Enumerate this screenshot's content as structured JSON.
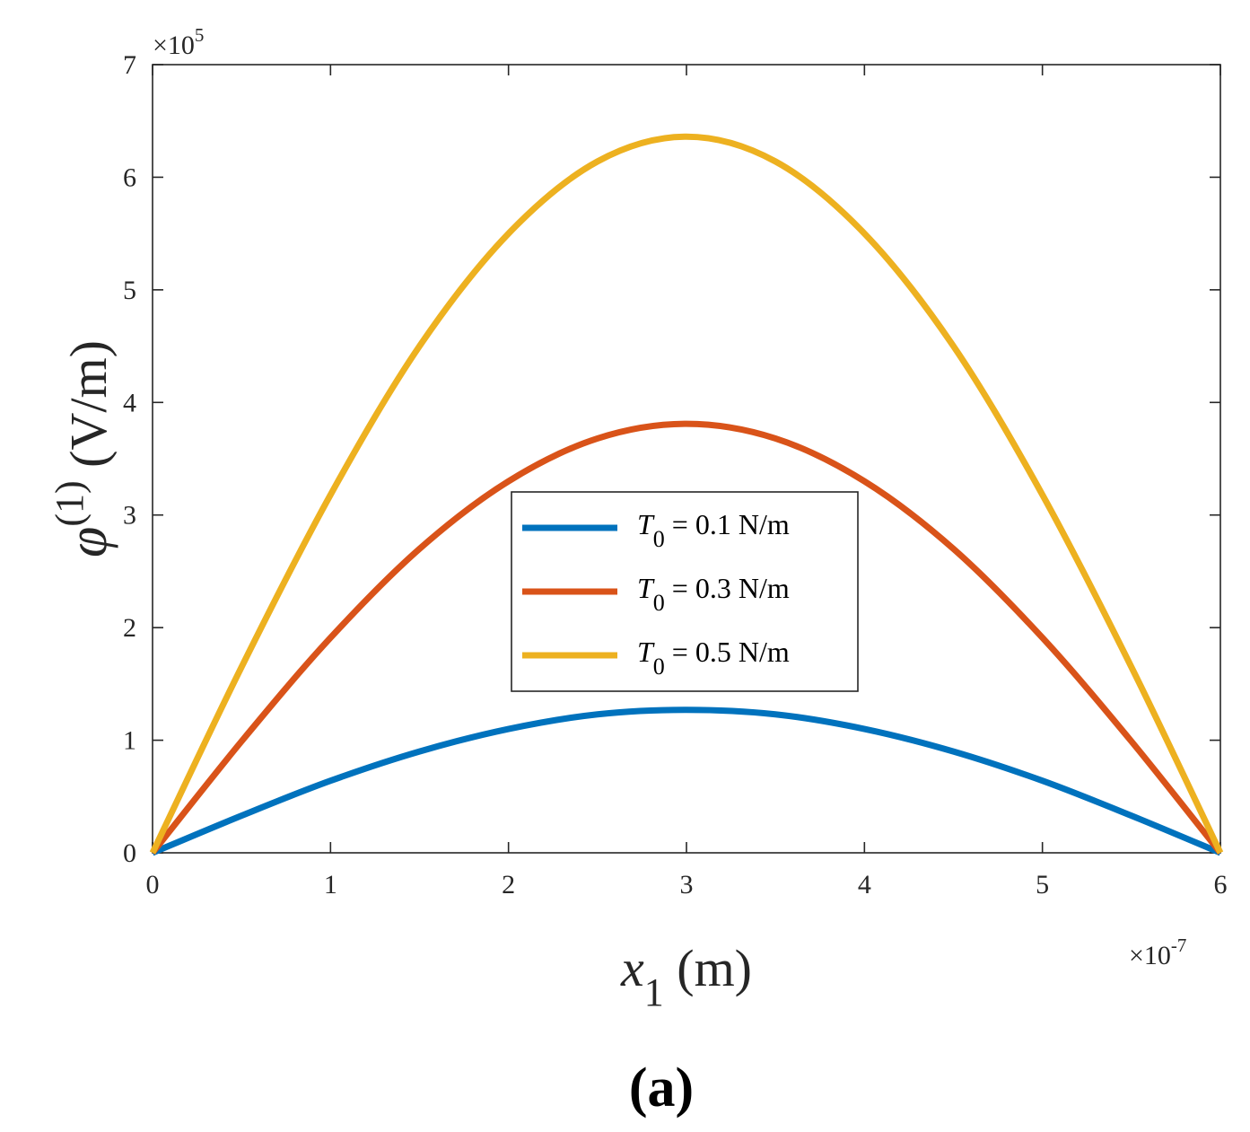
{
  "chart_data": {
    "type": "line",
    "xlabel": {
      "symbol": "x",
      "subscript": "1",
      "unit": " (m)"
    },
    "ylabel": {
      "symbol": "φ",
      "superscript": "(1)",
      "unit": " (V/m)"
    },
    "x_multiplier": {
      "base": "×10",
      "exponent": "-7"
    },
    "y_multiplier": {
      "base": "×10",
      "exponent": "5"
    },
    "xlim": [
      0,
      6e-07
    ],
    "ylim": [
      0,
      700000
    ],
    "x_ticks": [
      0,
      1e-07,
      2e-07,
      3e-07,
      4e-07,
      5e-07,
      6e-07
    ],
    "x_tick_labels": [
      "0",
      "1",
      "2",
      "3",
      "4",
      "5",
      "6"
    ],
    "y_ticks": [
      0,
      100000,
      200000,
      300000,
      400000,
      500000,
      600000,
      700000
    ],
    "y_tick_labels": [
      "0",
      "1",
      "2",
      "3",
      "4",
      "5",
      "6",
      "7"
    ],
    "x": [
      0,
      5e-08,
      1e-07,
      1.5e-07,
      2e-07,
      2.5e-07,
      3e-07,
      3.5e-07,
      4e-07,
      4.5e-07,
      5e-07,
      5.5e-07,
      6e-07
    ],
    "series": [
      {
        "name": "T0 = 0.1 N/m",
        "label_symbol": "T",
        "label_subscript": "0",
        "label_rest": " = 0.1 N/m",
        "color": "#0072BD",
        "values": [
          0,
          33000,
          64000,
          90000,
          110000,
          123000,
          127000,
          123000,
          110000,
          90000,
          64000,
          33000,
          0
        ]
      },
      {
        "name": "T0 = 0.3 N/m",
        "label_symbol": "T",
        "label_subscript": "0",
        "label_rest": " = 0.3 N/m",
        "color": "#D95319",
        "values": [
          0,
          99000,
          191000,
          270000,
          330000,
          368000,
          381000,
          368000,
          330000,
          270000,
          191000,
          99000,
          0
        ]
      },
      {
        "name": "T0 = 0.5 N/m",
        "label_symbol": "T",
        "label_subscript": "0",
        "label_rest": " = 0.5 N/m",
        "color": "#EDB120",
        "values": [
          0,
          165000,
          318000,
          450000,
          550000,
          614000,
          636000,
          614000,
          550000,
          450000,
          318000,
          165000,
          0
        ]
      }
    ],
    "legend_position": "center"
  },
  "caption": "(a)"
}
